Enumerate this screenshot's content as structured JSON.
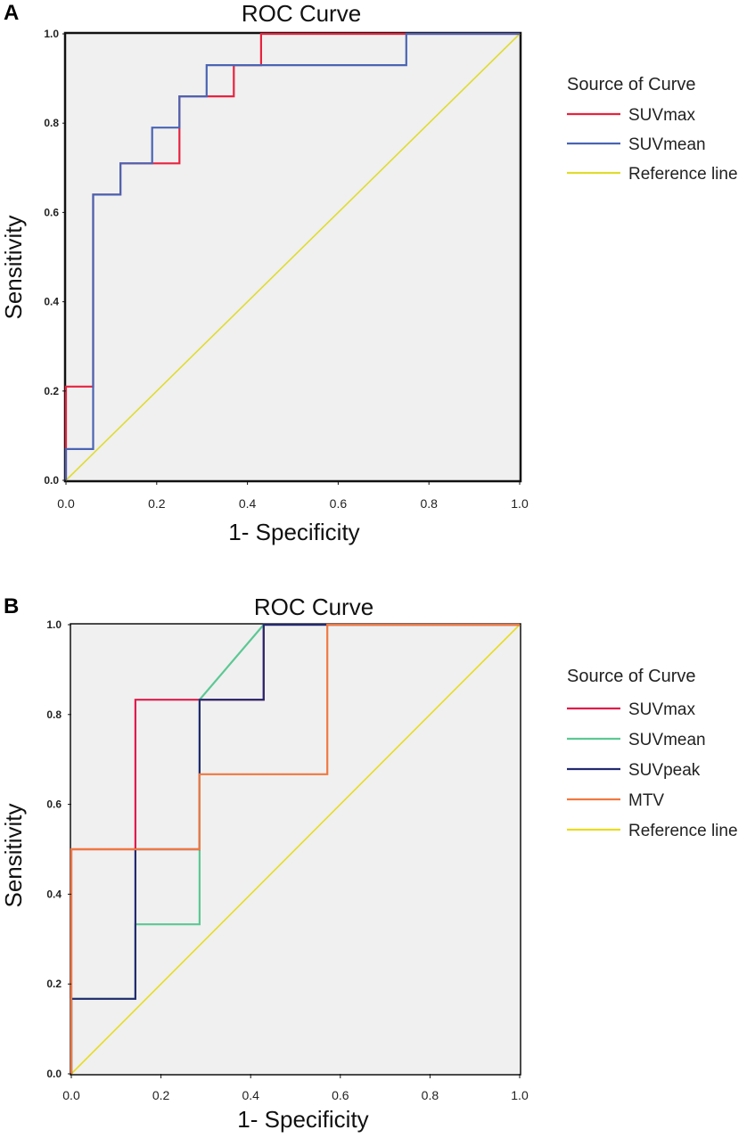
{
  "chart_data": [
    {
      "panel": "A",
      "type": "line",
      "title": "ROC Curve",
      "xlabel": "1- Specificity",
      "ylabel": "Sensitivity",
      "xlim": [
        0,
        1
      ],
      "ylim": [
        0,
        1
      ],
      "x_ticks": [
        "0.0",
        "0.2",
        "0.4",
        "0.6",
        "0.8",
        "1.0"
      ],
      "y_ticks": [
        "0.0",
        "0.2",
        "0.4",
        "0.6",
        "0.8",
        "1.0"
      ],
      "legend_title": "Source of Curve",
      "legend_position": "right",
      "series": [
        {
          "name": "SUVmax",
          "color": "#e8233f",
          "x": [
            0,
            0,
            0.06,
            0.06,
            0.12,
            0.12,
            0.25,
            0.25,
            0.37,
            0.37,
            0.43,
            0.43,
            1.0
          ],
          "y": [
            0,
            0.21,
            0.21,
            0.64,
            0.64,
            0.71,
            0.71,
            0.86,
            0.86,
            0.93,
            0.93,
            1.0,
            1.0
          ]
        },
        {
          "name": "SUVmean",
          "color": "#4a64b4",
          "x": [
            0,
            0,
            0.06,
            0.06,
            0.12,
            0.12,
            0.19,
            0.19,
            0.25,
            0.25,
            0.31,
            0.31,
            0.75,
            0.75,
            1.0
          ],
          "y": [
            0,
            0.07,
            0.07,
            0.64,
            0.64,
            0.71,
            0.71,
            0.79,
            0.79,
            0.86,
            0.86,
            0.93,
            0.93,
            1.0,
            1.0
          ]
        },
        {
          "name": "Reference line",
          "color": "#e0dc30",
          "x": [
            0,
            1
          ],
          "y": [
            0,
            1
          ]
        }
      ]
    },
    {
      "panel": "B",
      "type": "line",
      "title": "ROC Curve",
      "xlabel": "1- Specificity",
      "ylabel": "Sensitivity",
      "xlim": [
        0,
        1
      ],
      "ylim": [
        0,
        1
      ],
      "x_ticks": [
        "0.0",
        "0.2",
        "0.4",
        "0.6",
        "0.8",
        "1.0"
      ],
      "y_ticks": [
        "0.0",
        "0.2",
        "0.4",
        "0.6",
        "0.8",
        "1.0"
      ],
      "legend_title": "Source of Curve",
      "legend_position": "right",
      "series": [
        {
          "name": "SUVmax",
          "color": "#e01c4c",
          "x": [
            0,
            0,
            0.143,
            0.143,
            0.429,
            0.429,
            1.0
          ],
          "y": [
            0,
            0.5,
            0.5,
            0.833,
            0.833,
            1.0,
            1.0
          ]
        },
        {
          "name": "SUVmean",
          "color": "#5cc894",
          "x": [
            0,
            0,
            0.143,
            0.143,
            0.286,
            0.286,
            0.429,
            1.0
          ],
          "y": [
            0,
            0.167,
            0.167,
            0.333,
            0.333,
            0.833,
            1.0,
            1.0
          ]
        },
        {
          "name": "SUVpeak",
          "color": "#232a70",
          "x": [
            0,
            0,
            0.143,
            0.143,
            0.286,
            0.286,
            0.429,
            0.429,
            1.0
          ],
          "y": [
            0,
            0.167,
            0.167,
            0.5,
            0.5,
            0.833,
            0.833,
            1.0,
            1.0
          ]
        },
        {
          "name": "MTV",
          "color": "#f07840",
          "x": [
            0,
            0,
            0.286,
            0.286,
            0.571,
            0.571,
            1.0
          ],
          "y": [
            0,
            0.5,
            0.5,
            0.667,
            0.667,
            1.0,
            1.0
          ]
        },
        {
          "name": "Reference line",
          "color": "#e8dc20",
          "x": [
            0,
            1
          ],
          "y": [
            0,
            1
          ]
        }
      ]
    }
  ]
}
